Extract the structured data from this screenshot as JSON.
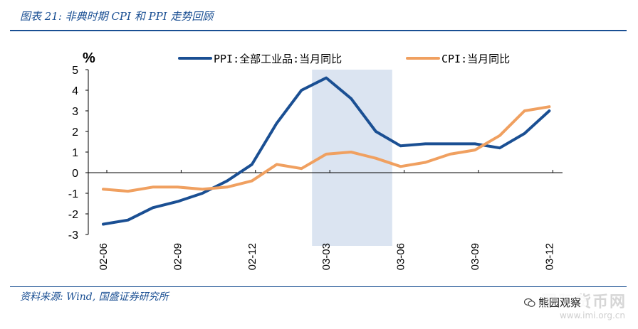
{
  "header": {
    "title": "图表 21:  非典时期 CPI 和 PPI 走势回顾"
  },
  "footer": {
    "source": "资料来源: Wind, 国盛证券研究所"
  },
  "watermark": {
    "badge": "熊园观察",
    "site": "www.imi.org.cn",
    "faint_text": "国际货币网"
  },
  "chart_data": {
    "type": "line",
    "unit": "%",
    "title": "",
    "xlabel": "",
    "ylabel": "%",
    "ylim": [
      -3,
      5
    ],
    "yticks": [
      -3,
      -2,
      -1,
      0,
      1,
      2,
      3,
      4,
      5
    ],
    "x": [
      "02-06",
      "02-07",
      "02-08",
      "02-09",
      "02-10",
      "02-11",
      "02-12",
      "03-01",
      "03-02",
      "03-03",
      "03-04",
      "03-05",
      "03-06",
      "03-07",
      "03-08",
      "03-09",
      "03-10",
      "03-11",
      "03-12"
    ],
    "xtick_labels": [
      "02-06",
      "02-09",
      "02-12",
      "03-03",
      "03-06",
      "03-09",
      "03-12"
    ],
    "series": [
      {
        "name": "PPI:全部工业品:当月同比",
        "color": "#1a4f93",
        "values": [
          -2.5,
          -2.3,
          -1.7,
          -1.4,
          -1.0,
          -0.4,
          0.4,
          2.4,
          4.0,
          4.6,
          3.6,
          2.0,
          1.3,
          1.4,
          1.4,
          1.4,
          1.2,
          1.9,
          3.0
        ]
      },
      {
        "name": "CPI:当月同比",
        "color": "#f0a060",
        "values": [
          -0.8,
          -0.9,
          -0.7,
          -0.7,
          -0.8,
          -0.7,
          -0.4,
          0.4,
          0.2,
          0.9,
          1.0,
          0.7,
          0.3,
          0.5,
          0.9,
          1.1,
          1.8,
          3.0,
          3.2
        ]
      }
    ],
    "highlight": {
      "from": "03-03",
      "to": "03-05",
      "color": "#dbe4f1"
    },
    "legend_position": "top",
    "grid": false
  }
}
